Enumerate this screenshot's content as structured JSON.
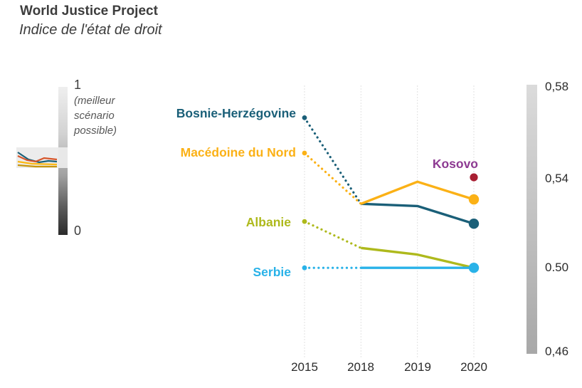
{
  "header": {
    "title": "World Justice Project",
    "subtitle": "Indice de l'état de droit"
  },
  "mini_scale": {
    "max_label": "1",
    "note": "(meilleur scénario possible)",
    "min_label": "0",
    "sparkline_colors": [
      "#1a6078",
      "#d6562b",
      "#fdb813",
      "#c8960c"
    ]
  },
  "chart_data": {
    "type": "line",
    "title": "World Justice Project — Indice de l'état de droit",
    "categories": [
      "2015",
      "2018",
      "2019",
      "2020"
    ],
    "ylim": [
      0.46,
      0.58
    ],
    "y_ticks": [
      "0,58",
      "0,54",
      "0.50",
      "0,46"
    ],
    "grid": "vertical-dotted",
    "legend_position": "left-of-lines",
    "note": "Segments 2015–2018 are dotted (no data for 2016–2017); 2018–2020 solid",
    "series": [
      {
        "id": "bosnie-herzegovine",
        "name": "Bosnie-Herzégovine",
        "color": "#1a5f78",
        "values": [
          0.566,
          0.527,
          0.526,
          0.518
        ],
        "dotted_first_segment": true,
        "start_marker": true,
        "end_dot": true,
        "point_only": false
      },
      {
        "id": "macedoine-du-nord",
        "name": "Macédoine du Nord",
        "color": "#fbb116",
        "values": [
          0.55,
          0.527,
          0.537,
          0.529
        ],
        "dotted_first_segment": true,
        "start_marker": true,
        "end_dot": true,
        "point_only": false
      },
      {
        "id": "albanie",
        "name": "Albanie",
        "color": "#aeb91c",
        "values": [
          0.519,
          0.507,
          0.504,
          0.498
        ],
        "dotted_first_segment": true,
        "start_marker": true,
        "end_dot": false,
        "point_only": false
      },
      {
        "id": "serbie",
        "name": "Serbie",
        "color": "#29b2e8",
        "values": [
          0.498,
          0.498,
          0.498,
          0.498
        ],
        "dotted_first_segment": true,
        "start_marker": true,
        "end_dot": true,
        "point_only": false
      },
      {
        "id": "kosovo",
        "name": "Kosovo",
        "color": "#a81e32",
        "label_color": "#8d3a92",
        "values": [
          null,
          null,
          null,
          0.539
        ],
        "dotted_first_segment": false,
        "start_marker": false,
        "end_dot": true,
        "point_only": true
      }
    ]
  }
}
